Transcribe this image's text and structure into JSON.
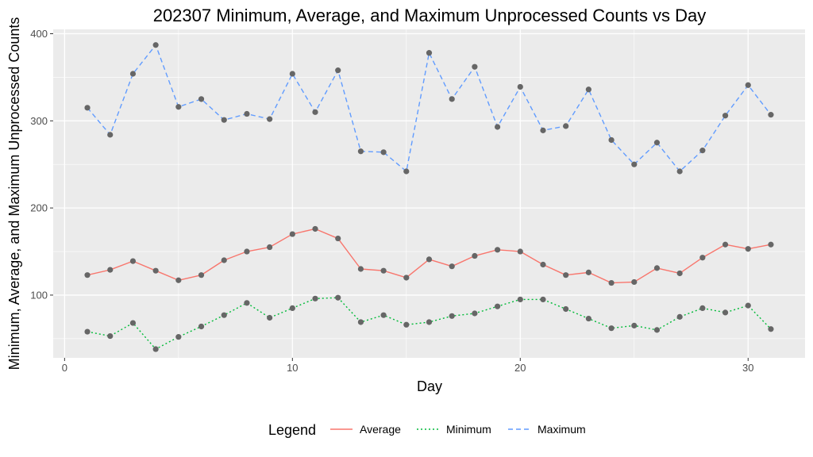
{
  "chart_data": {
    "type": "line",
    "title": "202307 Minimum, Average, and Maximum Unprocessed Counts vs Day",
    "xlabel": "Day",
    "ylabel": "Minimum, Average, and Maximum Unprocessed Counts",
    "xlim": [
      -0.5,
      32.5
    ],
    "ylim": [
      28,
      405
    ],
    "x_ticks": [
      0,
      10,
      20,
      30
    ],
    "x_tick_labels": [
      "0",
      "10",
      "20",
      "30"
    ],
    "y_ticks": [
      100,
      200,
      300,
      400
    ],
    "y_tick_labels": [
      "100",
      "200",
      "300",
      "400"
    ],
    "grid": true,
    "legend_position": "bottom",
    "legend_title": "Legend",
    "x": [
      1,
      2,
      3,
      4,
      5,
      6,
      7,
      8,
      9,
      10,
      11,
      12,
      13,
      14,
      15,
      16,
      17,
      18,
      19,
      20,
      21,
      22,
      23,
      24,
      25,
      26,
      27,
      28,
      29,
      30,
      31
    ],
    "series": [
      {
        "name": "Average",
        "color": "#F8766D",
        "dash": "solid",
        "values": [
          123,
          129,
          139,
          128,
          117,
          123,
          140,
          150,
          155,
          170,
          176,
          165,
          130,
          128,
          120,
          141,
          133,
          145,
          152,
          150,
          135,
          123,
          126,
          114,
          115,
          131,
          125,
          143,
          158,
          153,
          158
        ]
      },
      {
        "name": "Minimum",
        "color": "#00BA38",
        "dash": "dotted",
        "values": [
          58,
          53,
          68,
          38,
          52,
          64,
          77,
          91,
          74,
          85,
          96,
          97,
          69,
          77,
          66,
          69,
          76,
          79,
          87,
          95,
          95,
          84,
          73,
          62,
          65,
          60,
          75,
          85,
          80,
          88,
          61
        ]
      },
      {
        "name": "Maximum",
        "color": "#619CFF",
        "dash": "dashed",
        "values": [
          315,
          284,
          354,
          387,
          316,
          325,
          301,
          308,
          302,
          354,
          310,
          358,
          265,
          264,
          242,
          378,
          325,
          362,
          293,
          339,
          289,
          294,
          336,
          278,
          250,
          275,
          242,
          266,
          306,
          341,
          307
        ]
      }
    ],
    "point_color": "#666666"
  }
}
